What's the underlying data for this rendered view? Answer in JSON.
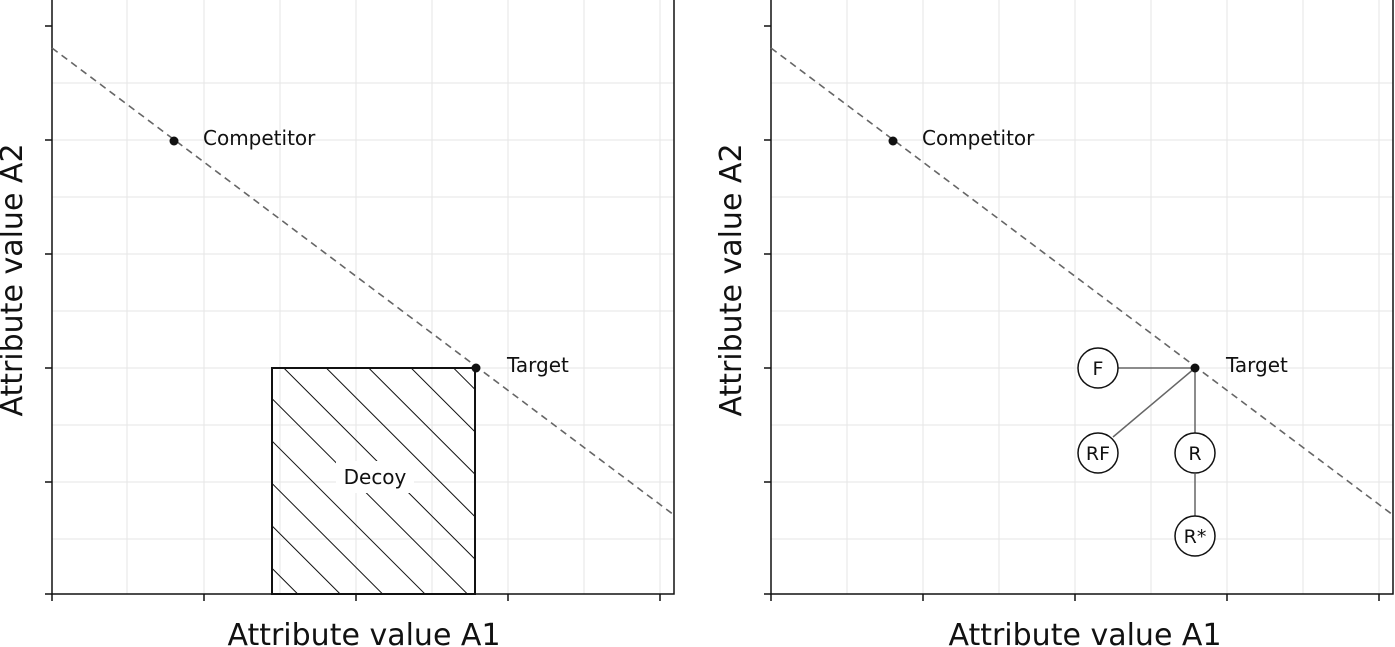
{
  "panels": [
    {
      "xlabel": "Attribute value A1",
      "ylabel": "Attribute value A2",
      "points": {
        "competitor": "Competitor",
        "target": "Target"
      },
      "decoy_label": "Decoy"
    },
    {
      "xlabel": "Attribute value A1",
      "ylabel": "Attribute value A2",
      "points": {
        "competitor": "Competitor",
        "target": "Target"
      },
      "nodes": {
        "f": "F",
        "rf": "RF",
        "r": "R",
        "rstar": "R*"
      }
    }
  ],
  "colors": {
    "grid": "#e3e3e3",
    "line": "#666666",
    "ink": "#111111"
  }
}
